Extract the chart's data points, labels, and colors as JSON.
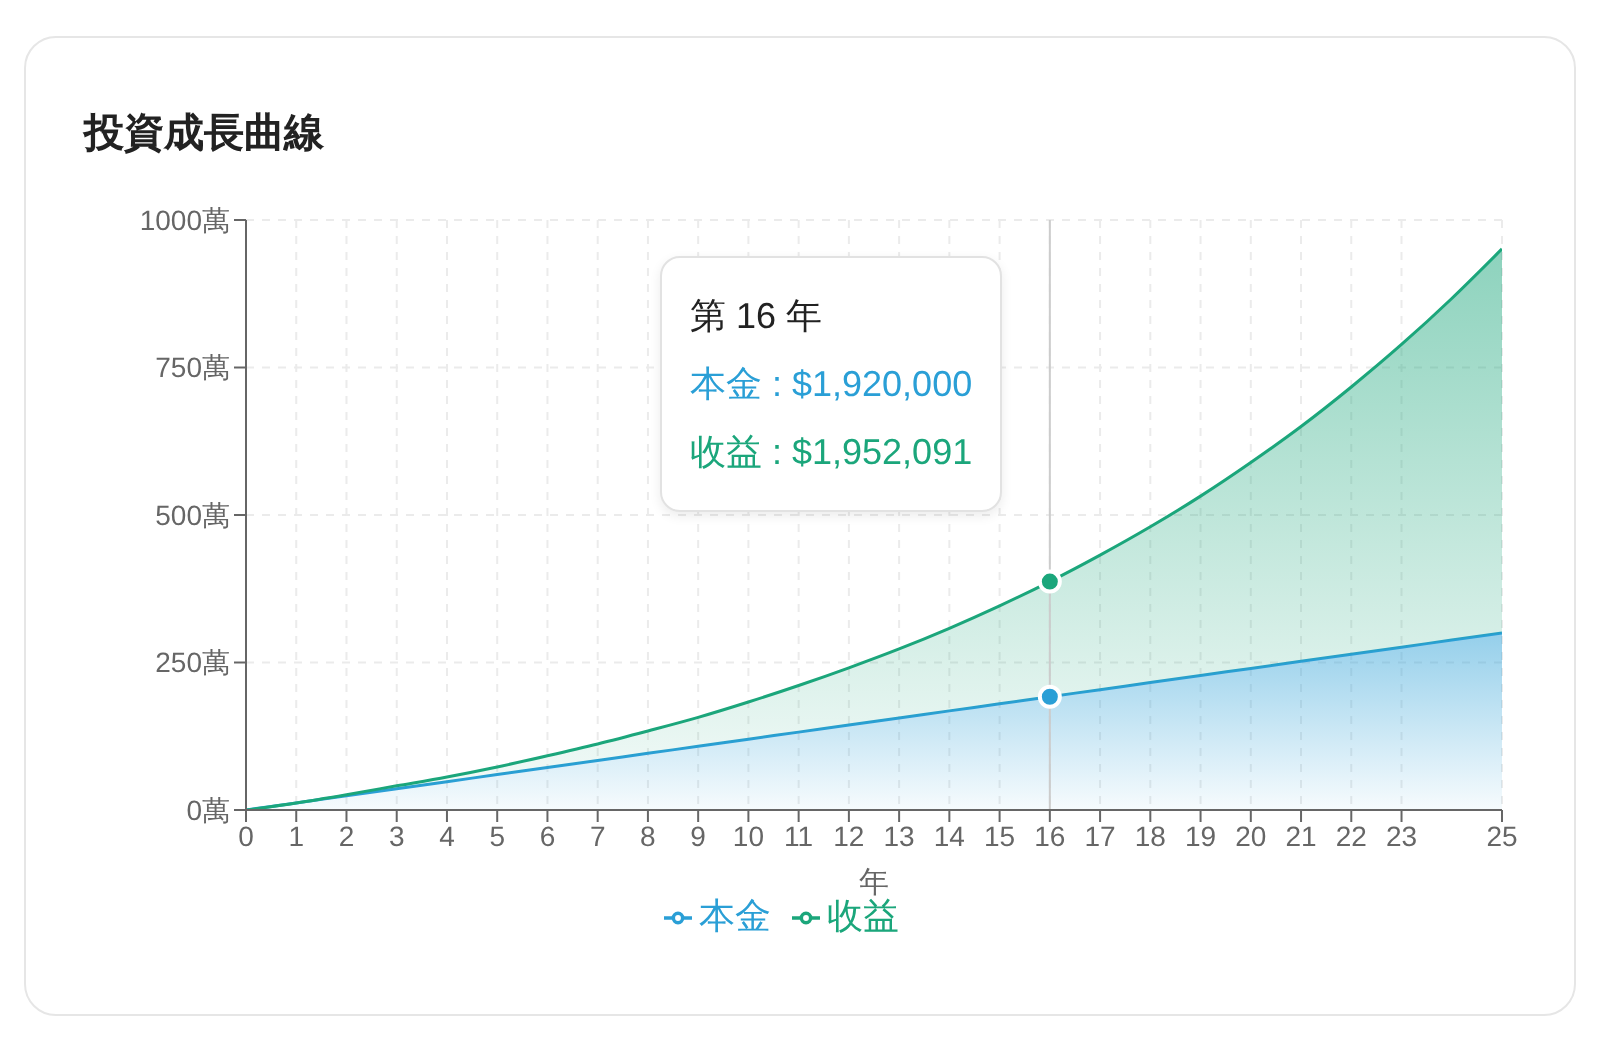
{
  "chart_data": {
    "type": "area",
    "title": "投資成長曲線",
    "xlabel": "年",
    "x": [
      0,
      1,
      2,
      3,
      4,
      5,
      6,
      7,
      8,
      9,
      10,
      11,
      12,
      13,
      14,
      15,
      16,
      17,
      18,
      19,
      20,
      21,
      22,
      23,
      24,
      25
    ],
    "xlim": [
      0,
      25
    ],
    "xticks": [
      0,
      1,
      2,
      3,
      4,
      5,
      6,
      7,
      8,
      9,
      10,
      11,
      12,
      13,
      14,
      15,
      16,
      17,
      18,
      19,
      20,
      21,
      22,
      23,
      25
    ],
    "ylim": [
      0,
      1000
    ],
    "yticks": [
      {
        "value": 0,
        "label": "0萬"
      },
      {
        "value": 250,
        "label": "250萬"
      },
      {
        "value": 500,
        "label": "500萬"
      },
      {
        "value": 750,
        "label": "750萬"
      },
      {
        "value": 1000,
        "label": "1000萬"
      }
    ],
    "stacked": true,
    "grid": true,
    "legend": "bottom",
    "series": [
      {
        "name": "本金",
        "color": "#2a9fd6",
        "values": [
          0,
          12,
          24,
          36,
          48,
          60,
          72,
          84,
          96,
          108,
          120,
          132,
          144,
          156,
          168,
          180,
          192,
          204,
          216,
          228,
          240,
          252,
          264,
          276,
          288,
          300
        ]
      },
      {
        "name": "收益",
        "color": "#1ba67b",
        "values": [
          0,
          0,
          2,
          5,
          8,
          13,
          20,
          28,
          38,
          49,
          63,
          79,
          97,
          117,
          140,
          166,
          195.2091,
          228,
          264,
          304,
          349,
          398,
          453,
          513,
          579,
          651
        ]
      }
    ],
    "ref_lines": [
      {
        "axis": "x",
        "value": 16,
        "color": "#cccccc"
      }
    ],
    "annotations": [
      "第 16 年",
      "本金 : $1,920,000",
      "收益 : $1,952,091"
    ]
  }
}
